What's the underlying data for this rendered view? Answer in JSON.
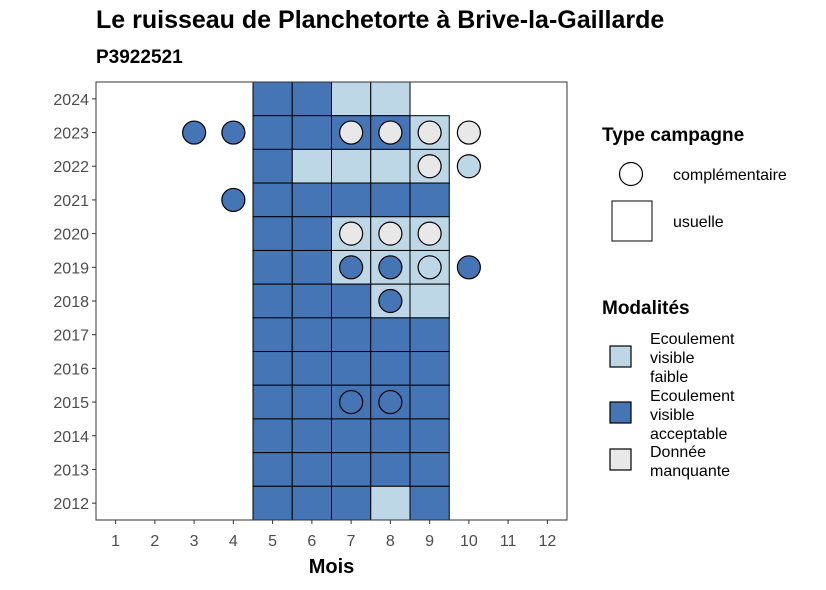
{
  "chart_data": {
    "type": "heatmap",
    "title": "Le ruisseau de Planchetorte à Brive-la-Gaillarde",
    "subtitle": "P3922521",
    "xlabel": "Mois",
    "ylabel": "",
    "x_ticks": [
      1,
      2,
      3,
      4,
      5,
      6,
      7,
      8,
      9,
      10,
      11,
      12
    ],
    "y_ticks": [
      2024,
      2023,
      2022,
      2021,
      2020,
      2019,
      2018,
      2017,
      2016,
      2015,
      2014,
      2013,
      2012
    ],
    "xlim": [
      0.5,
      12.5
    ],
    "ylim": [
      2011.5,
      2024.5
    ],
    "legend_type": {
      "title": "Type campagne",
      "items": [
        {
          "shape": "circle",
          "label": "complémentaire"
        },
        {
          "shape": "square",
          "label": "usuelle"
        }
      ]
    },
    "legend_modalites": {
      "title": "Modalités",
      "items": [
        {
          "key": "faible",
          "label_lines": [
            "Ecoulement",
            "visible",
            "faible"
          ],
          "color": "#bdd7e7"
        },
        {
          "key": "acceptable",
          "label_lines": [
            "Ecoulement",
            "visible",
            "acceptable"
          ],
          "color": "#4575b4"
        },
        {
          "key": "manquante",
          "label_lines": [
            "Donnée",
            "manquante"
          ],
          "color": "#e8e8e8"
        }
      ]
    },
    "colors": {
      "faible": "#bdd7e7",
      "acceptable": "#4575b4",
      "manquante": "#e8e8e8"
    },
    "squares": [
      {
        "year": 2024,
        "month": 5,
        "value": "acceptable"
      },
      {
        "year": 2024,
        "month": 6,
        "value": "acceptable"
      },
      {
        "year": 2024,
        "month": 7,
        "value": "faible"
      },
      {
        "year": 2024,
        "month": 8,
        "value": "faible"
      },
      {
        "year": 2023,
        "month": 5,
        "value": "acceptable"
      },
      {
        "year": 2023,
        "month": 6,
        "value": "acceptable"
      },
      {
        "year": 2023,
        "month": 7,
        "value": "acceptable"
      },
      {
        "year": 2023,
        "month": 8,
        "value": "acceptable"
      },
      {
        "year": 2023,
        "month": 9,
        "value": "faible"
      },
      {
        "year": 2022,
        "month": 5,
        "value": "acceptable"
      },
      {
        "year": 2022,
        "month": 6,
        "value": "faible"
      },
      {
        "year": 2022,
        "month": 7,
        "value": "faible"
      },
      {
        "year": 2022,
        "month": 8,
        "value": "faible"
      },
      {
        "year": 2022,
        "month": 9,
        "value": "faible"
      },
      {
        "year": 2021,
        "month": 5,
        "value": "acceptable"
      },
      {
        "year": 2021,
        "month": 6,
        "value": "acceptable"
      },
      {
        "year": 2021,
        "month": 7,
        "value": "acceptable"
      },
      {
        "year": 2021,
        "month": 8,
        "value": "acceptable"
      },
      {
        "year": 2021,
        "month": 9,
        "value": "acceptable"
      },
      {
        "year": 2020,
        "month": 5,
        "value": "acceptable"
      },
      {
        "year": 2020,
        "month": 6,
        "value": "acceptable"
      },
      {
        "year": 2020,
        "month": 7,
        "value": "faible"
      },
      {
        "year": 2020,
        "month": 8,
        "value": "faible"
      },
      {
        "year": 2020,
        "month": 9,
        "value": "faible"
      },
      {
        "year": 2019,
        "month": 5,
        "value": "acceptable"
      },
      {
        "year": 2019,
        "month": 6,
        "value": "acceptable"
      },
      {
        "year": 2019,
        "month": 7,
        "value": "faible"
      },
      {
        "year": 2019,
        "month": 8,
        "value": "faible"
      },
      {
        "year": 2019,
        "month": 9,
        "value": "faible"
      },
      {
        "year": 2018,
        "month": 5,
        "value": "acceptable"
      },
      {
        "year": 2018,
        "month": 6,
        "value": "acceptable"
      },
      {
        "year": 2018,
        "month": 7,
        "value": "acceptable"
      },
      {
        "year": 2018,
        "month": 8,
        "value": "faible"
      },
      {
        "year": 2018,
        "month": 9,
        "value": "faible"
      },
      {
        "year": 2017,
        "month": 5,
        "value": "acceptable"
      },
      {
        "year": 2017,
        "month": 6,
        "value": "acceptable"
      },
      {
        "year": 2017,
        "month": 7,
        "value": "acceptable"
      },
      {
        "year": 2017,
        "month": 8,
        "value": "acceptable"
      },
      {
        "year": 2017,
        "month": 9,
        "value": "acceptable"
      },
      {
        "year": 2016,
        "month": 5,
        "value": "acceptable"
      },
      {
        "year": 2016,
        "month": 6,
        "value": "acceptable"
      },
      {
        "year": 2016,
        "month": 7,
        "value": "acceptable"
      },
      {
        "year": 2016,
        "month": 8,
        "value": "acceptable"
      },
      {
        "year": 2016,
        "month": 9,
        "value": "acceptable"
      },
      {
        "year": 2015,
        "month": 5,
        "value": "acceptable"
      },
      {
        "year": 2015,
        "month": 6,
        "value": "acceptable"
      },
      {
        "year": 2015,
        "month": 7,
        "value": "acceptable"
      },
      {
        "year": 2015,
        "month": 8,
        "value": "acceptable"
      },
      {
        "year": 2015,
        "month": 9,
        "value": "acceptable"
      },
      {
        "year": 2014,
        "month": 5,
        "value": "acceptable"
      },
      {
        "year": 2014,
        "month": 6,
        "value": "acceptable"
      },
      {
        "year": 2014,
        "month": 7,
        "value": "acceptable"
      },
      {
        "year": 2014,
        "month": 8,
        "value": "acceptable"
      },
      {
        "year": 2014,
        "month": 9,
        "value": "acceptable"
      },
      {
        "year": 2013,
        "month": 5,
        "value": "acceptable"
      },
      {
        "year": 2013,
        "month": 6,
        "value": "acceptable"
      },
      {
        "year": 2013,
        "month": 7,
        "value": "acceptable"
      },
      {
        "year": 2013,
        "month": 8,
        "value": "acceptable"
      },
      {
        "year": 2013,
        "month": 9,
        "value": "acceptable"
      },
      {
        "year": 2012,
        "month": 5,
        "value": "acceptable"
      },
      {
        "year": 2012,
        "month": 6,
        "value": "acceptable"
      },
      {
        "year": 2012,
        "month": 7,
        "value": "acceptable"
      },
      {
        "year": 2012,
        "month": 8,
        "value": "faible"
      },
      {
        "year": 2012,
        "month": 9,
        "value": "acceptable"
      }
    ],
    "circles": [
      {
        "year": 2023,
        "month": 3,
        "value": "acceptable"
      },
      {
        "year": 2023,
        "month": 4,
        "value": "acceptable"
      },
      {
        "year": 2023,
        "month": 7,
        "value": "manquante"
      },
      {
        "year": 2023,
        "month": 8,
        "value": "manquante"
      },
      {
        "year": 2023,
        "month": 9,
        "value": "manquante"
      },
      {
        "year": 2023,
        "month": 10,
        "value": "manquante"
      },
      {
        "year": 2022,
        "month": 9,
        "value": "manquante"
      },
      {
        "year": 2022,
        "month": 10,
        "value": "faible"
      },
      {
        "year": 2021,
        "month": 4,
        "value": "acceptable"
      },
      {
        "year": 2020,
        "month": 7,
        "value": "manquante"
      },
      {
        "year": 2020,
        "month": 8,
        "value": "manquante"
      },
      {
        "year": 2020,
        "month": 9,
        "value": "manquante"
      },
      {
        "year": 2019,
        "month": 7,
        "value": "acceptable"
      },
      {
        "year": 2019,
        "month": 8,
        "value": "acceptable"
      },
      {
        "year": 2019,
        "month": 9,
        "value": "faible"
      },
      {
        "year": 2019,
        "month": 10,
        "value": "acceptable"
      },
      {
        "year": 2018,
        "month": 8,
        "value": "acceptable"
      },
      {
        "year": 2015,
        "month": 7,
        "value": "acceptable"
      },
      {
        "year": 2015,
        "month": 8,
        "value": "acceptable"
      }
    ]
  }
}
